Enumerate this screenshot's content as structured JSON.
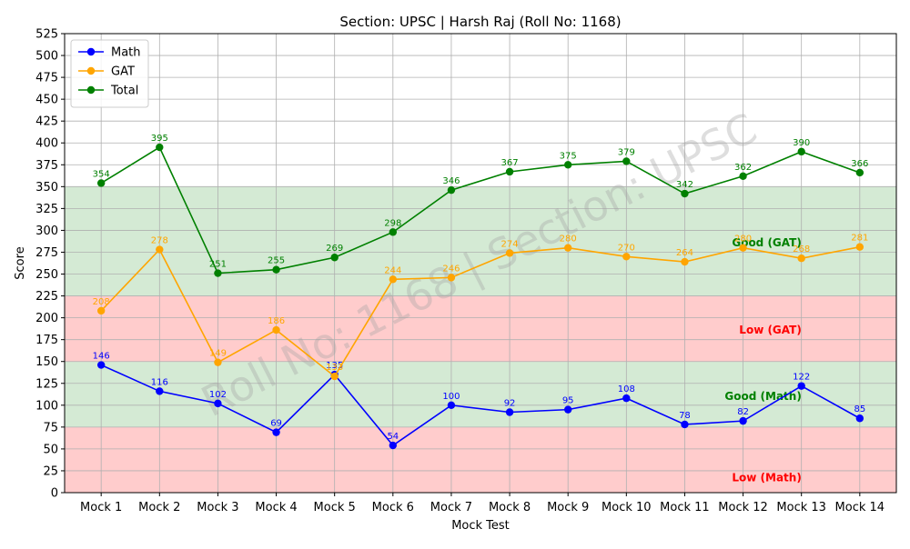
{
  "chart_data": {
    "type": "line",
    "title": "Section: UPSC | Harsh Raj (Roll No: 1168)",
    "xlabel": "Mock Test",
    "ylabel": "Score",
    "categories": [
      "Mock 1",
      "Mock 2",
      "Mock 3",
      "Mock 4",
      "Mock 5",
      "Mock 6",
      "Mock 7",
      "Mock 8",
      "Mock 9",
      "Mock 10",
      "Mock 11",
      "Mock 12",
      "Mock 13",
      "Mock 14"
    ],
    "ylim": [
      0,
      525
    ],
    "ytick_step": 25,
    "grid": true,
    "legend_position": "top-left",
    "series": [
      {
        "name": "Math",
        "color": "#0000ff",
        "values": [
          146,
          116,
          102,
          69,
          135,
          54,
          100,
          92,
          95,
          108,
          78,
          82,
          122,
          85
        ]
      },
      {
        "name": "GAT",
        "color": "#ffa500",
        "values": [
          208,
          278,
          149,
          186,
          133,
          244,
          246,
          274,
          280,
          270,
          264,
          280,
          268,
          281
        ]
      },
      {
        "name": "Total",
        "color": "#008000",
        "values": [
          354,
          395,
          251,
          255,
          269,
          298,
          346,
          367,
          375,
          379,
          342,
          362,
          390,
          366
        ]
      }
    ],
    "bands": [
      {
        "from": 0,
        "to": 75,
        "color": "#ffcccc",
        "label": "Low (Math)",
        "label_color": "#ff0000"
      },
      {
        "from": 75,
        "to": 150,
        "color": "#d4ead4",
        "label": "Good (Math)",
        "label_color": "#008000"
      },
      {
        "from": 150,
        "to": 225,
        "color": "#ffcccc",
        "label": "Low (GAT)",
        "label_color": "#ff0000"
      },
      {
        "from": 225,
        "to": 350,
        "color": "#d4ead4",
        "label": "Good (GAT)",
        "label_color": "#008000"
      }
    ],
    "watermark": "Roll No: 1168 | Section: UPSC"
  }
}
